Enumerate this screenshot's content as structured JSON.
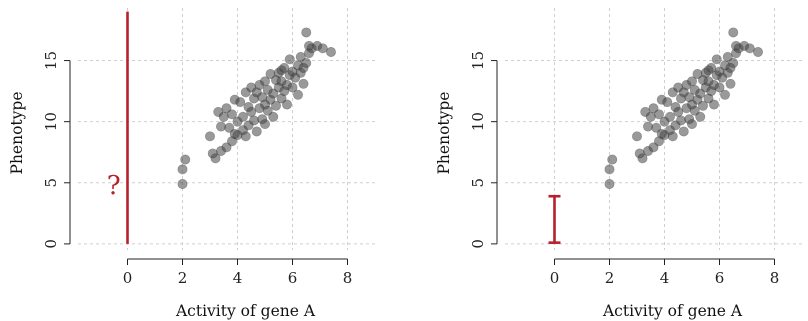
{
  "chart_data": [
    {
      "type": "scatter",
      "title": "",
      "xlabel": "Activity of gene A",
      "ylabel": "Phenotype",
      "xlim": [
        -1.8,
        9
      ],
      "ylim": [
        -0.5,
        19.3
      ],
      "xticks": [
        "0",
        "2",
        "4",
        "6",
        "8"
      ],
      "yticks": [
        "0",
        "5",
        "10",
        "15"
      ],
      "grid": true,
      "annotation": {
        "kind": "vertical-line",
        "x": 0,
        "y_from": 0,
        "y_to": 19,
        "label": "?",
        "label_x": -0.5,
        "label_y": 4.8,
        "color": "#b5222c"
      },
      "points": [
        [
          2.0,
          4.9
        ],
        [
          2.0,
          6.1
        ],
        [
          2.1,
          6.9
        ],
        [
          3.0,
          8.8
        ],
        [
          3.1,
          7.4
        ],
        [
          3.2,
          7.0
        ],
        [
          3.3,
          10.8
        ],
        [
          3.4,
          7.6
        ],
        [
          3.4,
          9.6
        ],
        [
          3.5,
          10.4
        ],
        [
          3.6,
          7.9
        ],
        [
          3.6,
          11.1
        ],
        [
          3.7,
          9.5
        ],
        [
          3.8,
          8.4
        ],
        [
          3.8,
          10.6
        ],
        [
          3.9,
          9.0
        ],
        [
          3.9,
          11.8
        ],
        [
          4.0,
          8.9
        ],
        [
          4.0,
          10.0
        ],
        [
          4.1,
          11.6
        ],
        [
          4.2,
          9.3
        ],
        [
          4.2,
          10.4
        ],
        [
          4.3,
          12.4
        ],
        [
          4.3,
          8.8
        ],
        [
          4.4,
          11.2
        ],
        [
          4.4,
          9.7
        ],
        [
          4.5,
          10.8
        ],
        [
          4.5,
          12.8
        ],
        [
          4.6,
          10.1
        ],
        [
          4.6,
          11.9
        ],
        [
          4.7,
          9.2
        ],
        [
          4.7,
          12.4
        ],
        [
          4.8,
          11.1
        ],
        [
          4.8,
          13.0
        ],
        [
          4.9,
          10.2
        ],
        [
          4.9,
          12.0
        ],
        [
          5.0,
          11.4
        ],
        [
          5.0,
          13.3
        ],
        [
          5.0,
          9.8
        ],
        [
          5.1,
          12.6
        ],
        [
          5.1,
          10.9
        ],
        [
          5.2,
          13.9
        ],
        [
          5.2,
          11.8
        ],
        [
          5.3,
          12.3
        ],
        [
          5.3,
          10.4
        ],
        [
          5.4,
          13.4
        ],
        [
          5.4,
          11.3
        ],
        [
          5.5,
          12.8
        ],
        [
          5.5,
          14.0
        ],
        [
          5.6,
          11.9
        ],
        [
          5.6,
          13.3
        ],
        [
          5.7,
          12.5
        ],
        [
          5.7,
          14.4
        ],
        [
          5.8,
          13.0
        ],
        [
          5.8,
          11.4
        ],
        [
          5.9,
          13.8
        ],
        [
          5.9,
          15.1
        ],
        [
          6.0,
          12.8
        ],
        [
          6.0,
          14.1
        ],
        [
          6.1,
          13.6
        ],
        [
          6.2,
          14.6
        ],
        [
          6.2,
          12.2
        ],
        [
          6.3,
          14.0
        ],
        [
          6.3,
          15.3
        ],
        [
          6.4,
          13.1
        ],
        [
          6.5,
          14.8
        ],
        [
          6.5,
          17.3
        ],
        [
          6.6,
          16.2
        ],
        [
          6.6,
          15.6
        ],
        [
          6.7,
          16.0
        ],
        [
          6.9,
          16.2
        ],
        [
          7.1,
          16.0
        ],
        [
          7.4,
          15.7
        ],
        [
          6.4,
          14.4
        ],
        [
          5.6,
          14.2
        ]
      ]
    },
    {
      "type": "scatter",
      "title": "",
      "xlabel": "Activity of gene A",
      "ylabel": "Phenotype",
      "xlim": [
        -1.8,
        9
      ],
      "ylim": [
        -0.5,
        19.3
      ],
      "xticks": [
        "0",
        "2",
        "4",
        "6",
        "8"
      ],
      "yticks": [
        "0",
        "5",
        "10",
        "15"
      ],
      "grid": true,
      "annotation": {
        "kind": "error-bar",
        "x": 0,
        "y_from": 0.1,
        "y_to": 3.9,
        "color": "#b5222c"
      },
      "points": [
        [
          2.0,
          4.9
        ],
        [
          2.0,
          6.1
        ],
        [
          2.1,
          6.9
        ],
        [
          3.0,
          8.8
        ],
        [
          3.1,
          7.4
        ],
        [
          3.2,
          7.0
        ],
        [
          3.3,
          10.8
        ],
        [
          3.4,
          7.6
        ],
        [
          3.4,
          9.6
        ],
        [
          3.5,
          10.4
        ],
        [
          3.6,
          7.9
        ],
        [
          3.6,
          11.1
        ],
        [
          3.7,
          9.5
        ],
        [
          3.8,
          8.4
        ],
        [
          3.8,
          10.6
        ],
        [
          3.9,
          9.0
        ],
        [
          3.9,
          11.8
        ],
        [
          4.0,
          8.9
        ],
        [
          4.0,
          10.0
        ],
        [
          4.1,
          11.6
        ],
        [
          4.2,
          9.3
        ],
        [
          4.2,
          10.4
        ],
        [
          4.3,
          12.4
        ],
        [
          4.3,
          8.8
        ],
        [
          4.4,
          11.2
        ],
        [
          4.4,
          9.7
        ],
        [
          4.5,
          10.8
        ],
        [
          4.5,
          12.8
        ],
        [
          4.6,
          10.1
        ],
        [
          4.6,
          11.9
        ],
        [
          4.7,
          9.2
        ],
        [
          4.7,
          12.4
        ],
        [
          4.8,
          11.1
        ],
        [
          4.8,
          13.0
        ],
        [
          4.9,
          10.2
        ],
        [
          4.9,
          12.0
        ],
        [
          5.0,
          11.4
        ],
        [
          5.0,
          13.3
        ],
        [
          5.0,
          9.8
        ],
        [
          5.1,
          12.6
        ],
        [
          5.1,
          10.9
        ],
        [
          5.2,
          13.9
        ],
        [
          5.2,
          11.8
        ],
        [
          5.3,
          12.3
        ],
        [
          5.3,
          10.4
        ],
        [
          5.4,
          13.4
        ],
        [
          5.4,
          11.3
        ],
        [
          5.5,
          12.8
        ],
        [
          5.5,
          14.0
        ],
        [
          5.6,
          11.9
        ],
        [
          5.6,
          13.3
        ],
        [
          5.7,
          12.5
        ],
        [
          5.7,
          14.4
        ],
        [
          5.8,
          13.0
        ],
        [
          5.8,
          11.4
        ],
        [
          5.9,
          13.8
        ],
        [
          5.9,
          15.1
        ],
        [
          6.0,
          12.8
        ],
        [
          6.0,
          14.1
        ],
        [
          6.1,
          13.6
        ],
        [
          6.2,
          14.6
        ],
        [
          6.2,
          12.2
        ],
        [
          6.3,
          14.0
        ],
        [
          6.3,
          15.3
        ],
        [
          6.4,
          13.1
        ],
        [
          6.5,
          14.8
        ],
        [
          6.5,
          17.3
        ],
        [
          6.6,
          16.2
        ],
        [
          6.6,
          15.6
        ],
        [
          6.7,
          16.0
        ],
        [
          6.9,
          16.2
        ],
        [
          7.1,
          16.0
        ],
        [
          7.4,
          15.7
        ],
        [
          6.4,
          14.4
        ],
        [
          5.6,
          14.2
        ]
      ]
    }
  ]
}
